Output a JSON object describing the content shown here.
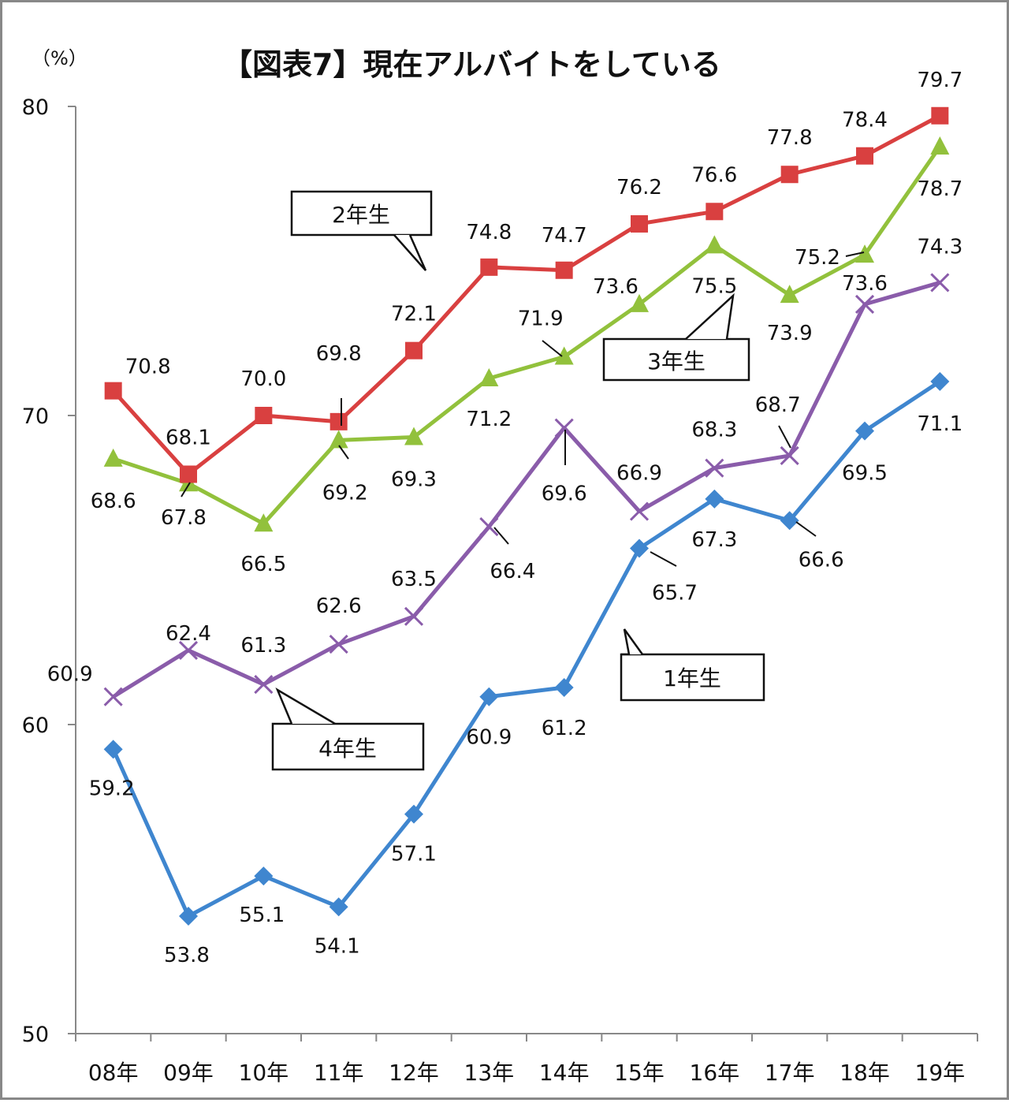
{
  "chart_data": {
    "type": "line",
    "title": "【図表7】現在アルバイトをしている",
    "unit_label": "（%）",
    "categories": [
      "08年",
      "09年",
      "10年",
      "11年",
      "12年",
      "13年",
      "14年",
      "15年",
      "16年",
      "17年",
      "18年",
      "19年"
    ],
    "ylim": [
      50,
      80
    ],
    "yticks": [
      "50",
      "60",
      "70",
      "80"
    ],
    "series": [
      {
        "name": "1年生",
        "color": "#3f86cf",
        "marker": "diamond",
        "values": [
          59.2,
          53.8,
          55.1,
          54.1,
          57.1,
          60.9,
          61.2,
          65.7,
          67.3,
          66.6,
          69.5,
          71.1
        ],
        "labels": [
          "59.2",
          "53.8",
          "55.1",
          "54.1",
          "57.1",
          "60.9",
          "61.2",
          "65.7",
          "67.3",
          "66.6",
          "69.5",
          "71.1"
        ]
      },
      {
        "name": "2年生",
        "color": "#d94040",
        "marker": "square",
        "values": [
          70.8,
          68.1,
          70.0,
          69.8,
          72.1,
          74.8,
          74.7,
          76.2,
          76.6,
          77.8,
          78.4,
          79.7
        ],
        "labels": [
          "70.8",
          "68.1",
          "70.0",
          "69.8",
          "72.1",
          "74.8",
          "74.7",
          "76.2",
          "76.6",
          "77.8",
          "78.4",
          "79.7"
        ]
      },
      {
        "name": "3年生",
        "color": "#92c13c",
        "marker": "triangle",
        "values": [
          68.6,
          67.8,
          66.5,
          69.2,
          69.3,
          71.2,
          71.9,
          73.6,
          75.5,
          73.9,
          75.2,
          78.7
        ],
        "labels": [
          "68.6",
          "67.8",
          "66.5",
          "69.2",
          "69.3",
          "71.2",
          "71.9",
          "73.6",
          "75.5",
          "73.9",
          "75.2",
          "78.7"
        ]
      },
      {
        "name": "4年生",
        "color": "#8a5caa",
        "marker": "x",
        "values": [
          60.9,
          62.4,
          61.3,
          62.6,
          63.5,
          66.4,
          69.6,
          66.9,
          68.3,
          68.7,
          73.6,
          74.3
        ],
        "labels": [
          "60.9",
          "62.4",
          "61.3",
          "62.6",
          "63.5",
          "66.4",
          "69.6",
          "66.9",
          "68.3",
          "68.7",
          "73.6",
          "74.3"
        ]
      }
    ],
    "callouts": [
      "1年生",
      "2年生",
      "3年生",
      "4年生"
    ],
    "grid": false,
    "legend": "callouts"
  }
}
